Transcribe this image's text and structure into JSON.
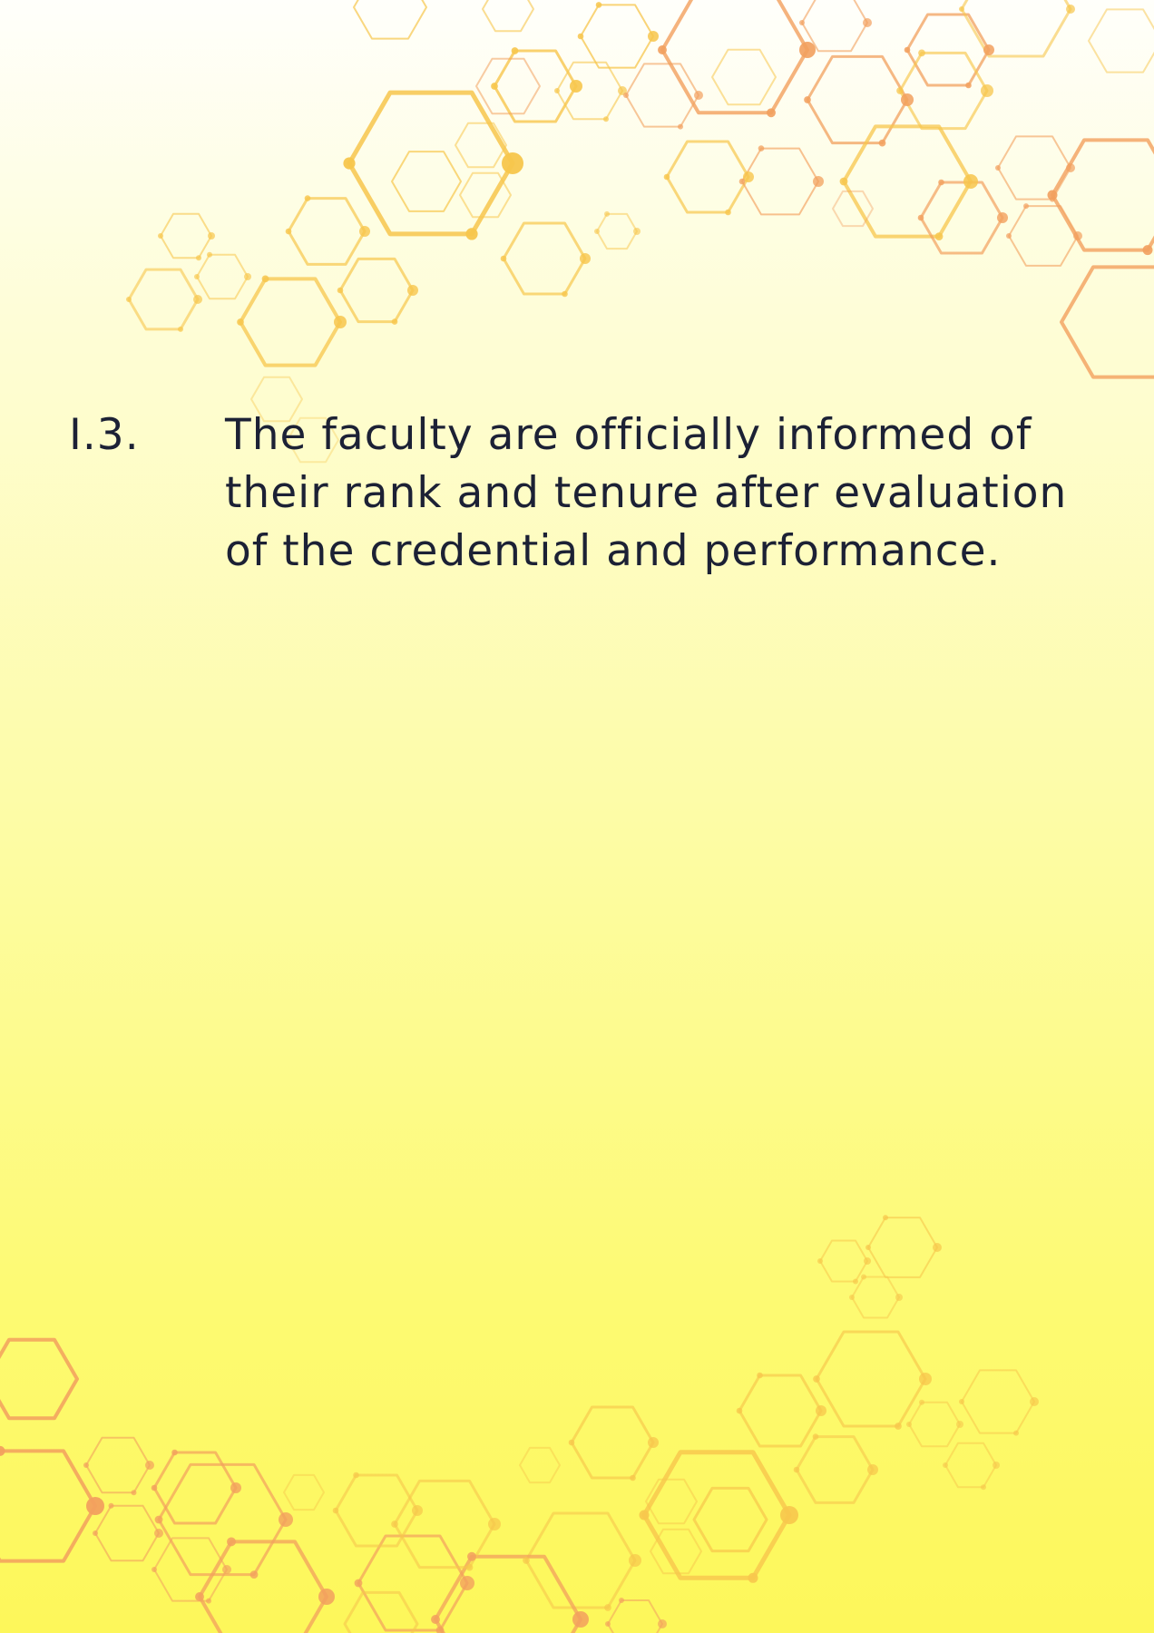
{
  "item": {
    "number": "I.3.",
    "text": "The faculty are officially informed of their rank and tenure after evaluation of the credential and performance."
  },
  "colors": {
    "text": "#1c2135",
    "hex_yellow": "#f7c64c",
    "hex_orange": "#f2a05e",
    "background_top": "#fffffb",
    "background_bottom": "#fdf75a"
  }
}
